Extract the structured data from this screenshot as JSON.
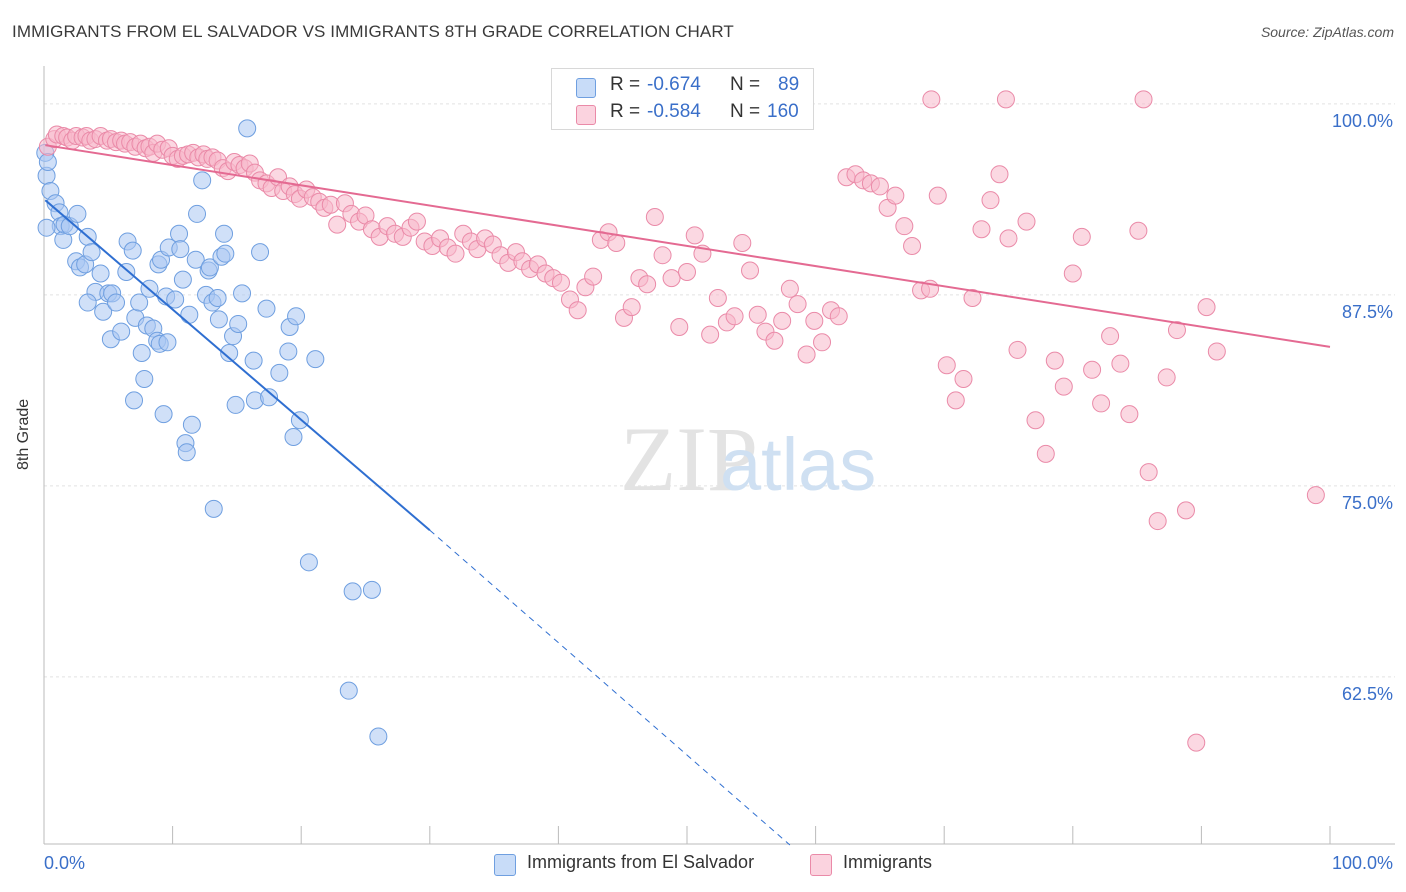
{
  "title": "IMMIGRANTS FROM EL SALVADOR VS IMMIGRANTS 8TH GRADE CORRELATION CHART",
  "source": "Source: ZipAtlas.com",
  "watermark": {
    "zip": "ZIP",
    "atlas": "atlas"
  },
  "stats": [
    {
      "r_label": "R =",
      "r_value": "-0.674",
      "n_label": "N =",
      "n_value": "89",
      "color": "#a9c7f2"
    },
    {
      "r_label": "R =",
      "r_value": "-0.584",
      "n_label": "N =",
      "n_value": "160",
      "color": "#f7b8cb"
    }
  ],
  "legend": [
    {
      "label": "Immigrants from El Salvador",
      "color": "#a9c7f2"
    },
    {
      "label": "Immigrants",
      "color": "#f7b8cb"
    }
  ],
  "chart_data": {
    "type": "scatter",
    "title": "IMMIGRANTS FROM EL SALVADOR VS IMMIGRANTS 8TH GRADE CORRELATION CHART",
    "xlabel": "",
    "ylabel": "8th Grade",
    "xlim": [
      0,
      100
    ],
    "ylim": [
      51.5,
      101.5
    ],
    "x_tick_labels": [
      "0.0%",
      "100.0%"
    ],
    "y_ticks": [
      62.5,
      75.0,
      87.5,
      100.0
    ],
    "y_tick_labels": [
      "62.5%",
      "75.0%",
      "87.5%",
      "100.0%"
    ],
    "grid": true,
    "legend_position": "bottom",
    "series": [
      {
        "name": "Immigrants from El Salvador",
        "color": "#a9c7f2",
        "stroke": "#6f9fe0",
        "trend": {
          "x0": 0.1,
          "y0": 93.7,
          "x1": 30.0,
          "y1": 72.1,
          "dash_to_x": 58.0,
          "dash_to_y": 51.5,
          "color": "#2f6fd1"
        },
        "points": [
          [
            0.1,
            96.8
          ],
          [
            0.2,
            95.3
          ],
          [
            0.5,
            94.3
          ],
          [
            0.9,
            93.5
          ],
          [
            1.2,
            92.9
          ],
          [
            1.3,
            92.0
          ],
          [
            1.5,
            91.1
          ],
          [
            1.6,
            92.1
          ],
          [
            2.0,
            92.0
          ],
          [
            2.6,
            92.8
          ],
          [
            2.5,
            89.7
          ],
          [
            2.8,
            89.3
          ],
          [
            3.2,
            89.5
          ],
          [
            3.4,
            91.3
          ],
          [
            3.7,
            90.3
          ],
          [
            4.0,
            87.7
          ],
          [
            4.4,
            88.9
          ],
          [
            4.6,
            86.4
          ],
          [
            5.0,
            87.6
          ],
          [
            5.3,
            87.6
          ],
          [
            3.4,
            87.0
          ],
          [
            5.6,
            87.0
          ],
          [
            5.2,
            84.6
          ],
          [
            6.0,
            85.1
          ],
          [
            6.4,
            89.0
          ],
          [
            6.5,
            91.0
          ],
          [
            6.9,
            90.4
          ],
          [
            7.1,
            86.0
          ],
          [
            7.4,
            87.0
          ],
          [
            7.6,
            83.7
          ],
          [
            7.8,
            82.0
          ],
          [
            7.0,
            80.6
          ],
          [
            8.0,
            85.5
          ],
          [
            8.2,
            87.9
          ],
          [
            8.5,
            85.3
          ],
          [
            8.8,
            84.5
          ],
          [
            8.9,
            89.5
          ],
          [
            9.1,
            89.8
          ],
          [
            9.3,
            79.7
          ],
          [
            9.0,
            84.3
          ],
          [
            9.6,
            84.4
          ],
          [
            9.5,
            87.4
          ],
          [
            9.7,
            90.6
          ],
          [
            10.2,
            87.2
          ],
          [
            10.5,
            91.5
          ],
          [
            10.8,
            88.5
          ],
          [
            10.6,
            90.5
          ],
          [
            11.0,
            77.8
          ],
          [
            11.1,
            77.2
          ],
          [
            11.3,
            86.2
          ],
          [
            11.5,
            79.0
          ],
          [
            11.8,
            89.8
          ],
          [
            11.9,
            92.8
          ],
          [
            12.3,
            95.0
          ],
          [
            12.6,
            87.5
          ],
          [
            12.8,
            89.1
          ],
          [
            12.9,
            89.3
          ],
          [
            13.1,
            87.0
          ],
          [
            13.2,
            73.5
          ],
          [
            13.5,
            87.3
          ],
          [
            13.6,
            85.9
          ],
          [
            13.8,
            90.0
          ],
          [
            14.0,
            91.5
          ],
          [
            14.1,
            90.2
          ],
          [
            14.4,
            83.7
          ],
          [
            14.7,
            84.8
          ],
          [
            14.9,
            80.3
          ],
          [
            15.1,
            85.6
          ],
          [
            15.4,
            87.6
          ],
          [
            15.8,
            98.4
          ],
          [
            16.4,
            80.6
          ],
          [
            16.3,
            83.2
          ],
          [
            16.8,
            90.3
          ],
          [
            17.3,
            86.6
          ],
          [
            17.5,
            80.8
          ],
          [
            18.3,
            82.4
          ],
          [
            19.0,
            83.8
          ],
          [
            19.1,
            85.4
          ],
          [
            19.4,
            78.2
          ],
          [
            19.6,
            86.1
          ],
          [
            19.9,
            79.3
          ],
          [
            20.6,
            70.0
          ],
          [
            21.1,
            83.3
          ],
          [
            23.7,
            61.6
          ],
          [
            24.0,
            68.1
          ],
          [
            25.5,
            68.2
          ],
          [
            26.0,
            58.6
          ],
          [
            0.2,
            91.9
          ],
          [
            0.3,
            96.2
          ]
        ]
      },
      {
        "name": "Immigrants",
        "color": "#f7b8cb",
        "stroke": "#ea8aa8",
        "trend": {
          "x0": 0.1,
          "y0": 97.3,
          "x1": 100.0,
          "y1": 84.1,
          "color": "#e46a92"
        },
        "points": [
          [
            0.3,
            97.2
          ],
          [
            0.8,
            97.7
          ],
          [
            1.0,
            98.0
          ],
          [
            1.5,
            97.9
          ],
          [
            1.8,
            97.8
          ],
          [
            2.2,
            97.6
          ],
          [
            2.5,
            97.9
          ],
          [
            3.0,
            97.8
          ],
          [
            3.3,
            97.9
          ],
          [
            3.6,
            97.6
          ],
          [
            4.0,
            97.7
          ],
          [
            4.4,
            97.9
          ],
          [
            4.9,
            97.6
          ],
          [
            5.2,
            97.7
          ],
          [
            5.6,
            97.5
          ],
          [
            6.0,
            97.6
          ],
          [
            6.3,
            97.4
          ],
          [
            6.7,
            97.5
          ],
          [
            7.1,
            97.2
          ],
          [
            7.5,
            97.4
          ],
          [
            7.9,
            97.1
          ],
          [
            8.2,
            97.2
          ],
          [
            8.5,
            96.8
          ],
          [
            8.8,
            97.4
          ],
          [
            9.2,
            97.0
          ],
          [
            9.7,
            97.1
          ],
          [
            10.0,
            96.6
          ],
          [
            10.4,
            96.4
          ],
          [
            10.8,
            96.6
          ],
          [
            11.2,
            96.7
          ],
          [
            11.6,
            96.8
          ],
          [
            12.0,
            96.5
          ],
          [
            12.4,
            96.7
          ],
          [
            12.7,
            96.4
          ],
          [
            13.1,
            96.5
          ],
          [
            13.5,
            96.3
          ],
          [
            13.9,
            95.8
          ],
          [
            14.3,
            95.6
          ],
          [
            14.8,
            96.2
          ],
          [
            15.2,
            96.0
          ],
          [
            15.6,
            95.8
          ],
          [
            16.0,
            96.1
          ],
          [
            16.4,
            95.5
          ],
          [
            16.8,
            95.0
          ],
          [
            17.3,
            94.8
          ],
          [
            17.7,
            94.5
          ],
          [
            18.2,
            95.2
          ],
          [
            18.6,
            94.3
          ],
          [
            19.1,
            94.6
          ],
          [
            19.5,
            94.1
          ],
          [
            19.9,
            93.8
          ],
          [
            20.4,
            94.4
          ],
          [
            20.9,
            93.9
          ],
          [
            21.4,
            93.6
          ],
          [
            21.8,
            93.2
          ],
          [
            22.3,
            93.4
          ],
          [
            22.8,
            92.1
          ],
          [
            23.4,
            93.5
          ],
          [
            23.9,
            92.8
          ],
          [
            24.5,
            92.3
          ],
          [
            25.0,
            92.7
          ],
          [
            25.5,
            91.8
          ],
          [
            26.1,
            91.3
          ],
          [
            26.7,
            92.0
          ],
          [
            27.3,
            91.5
          ],
          [
            27.9,
            91.3
          ],
          [
            28.5,
            91.9
          ],
          [
            29.0,
            92.3
          ],
          [
            29.6,
            91.0
          ],
          [
            30.2,
            90.7
          ],
          [
            30.8,
            91.2
          ],
          [
            31.4,
            90.6
          ],
          [
            32.0,
            90.2
          ],
          [
            32.6,
            91.5
          ],
          [
            33.2,
            91.0
          ],
          [
            33.7,
            90.5
          ],
          [
            34.3,
            91.2
          ],
          [
            34.9,
            90.8
          ],
          [
            35.5,
            90.1
          ],
          [
            36.1,
            89.6
          ],
          [
            36.7,
            90.3
          ],
          [
            37.2,
            89.7
          ],
          [
            37.8,
            89.2
          ],
          [
            38.4,
            89.5
          ],
          [
            39.0,
            88.9
          ],
          [
            39.6,
            88.6
          ],
          [
            40.2,
            88.3
          ],
          [
            40.9,
            87.2
          ],
          [
            41.5,
            86.5
          ],
          [
            42.1,
            88.0
          ],
          [
            42.7,
            88.7
          ],
          [
            43.3,
            91.1
          ],
          [
            43.9,
            91.6
          ],
          [
            44.5,
            90.9
          ],
          [
            45.1,
            86.0
          ],
          [
            45.7,
            86.7
          ],
          [
            46.3,
            88.6
          ],
          [
            46.9,
            88.2
          ],
          [
            47.5,
            92.6
          ],
          [
            48.1,
            90.1
          ],
          [
            48.8,
            88.6
          ],
          [
            49.4,
            85.4
          ],
          [
            50.0,
            89.0
          ],
          [
            50.6,
            91.4
          ],
          [
            51.2,
            90.2
          ],
          [
            51.8,
            84.9
          ],
          [
            52.4,
            87.3
          ],
          [
            53.1,
            85.7
          ],
          [
            53.7,
            86.1
          ],
          [
            54.3,
            90.9
          ],
          [
            54.9,
            89.1
          ],
          [
            55.5,
            86.2
          ],
          [
            56.1,
            85.1
          ],
          [
            56.8,
            84.5
          ],
          [
            57.4,
            85.8
          ],
          [
            58.0,
            87.9
          ],
          [
            58.6,
            86.9
          ],
          [
            59.3,
            83.6
          ],
          [
            59.9,
            85.8
          ],
          [
            60.5,
            84.4
          ],
          [
            61.2,
            86.5
          ],
          [
            61.8,
            86.1
          ],
          [
            62.4,
            95.2
          ],
          [
            63.1,
            95.4
          ],
          [
            63.7,
            95.0
          ],
          [
            64.3,
            94.8
          ],
          [
            65.0,
            94.6
          ],
          [
            65.6,
            93.2
          ],
          [
            66.2,
            94.0
          ],
          [
            66.9,
            92.0
          ],
          [
            67.5,
            90.7
          ],
          [
            68.2,
            87.8
          ],
          [
            68.9,
            87.9
          ],
          [
            69.5,
            94.0
          ],
          [
            70.2,
            82.9
          ],
          [
            70.9,
            80.6
          ],
          [
            71.5,
            82.0
          ],
          [
            72.2,
            87.3
          ],
          [
            72.9,
            91.8
          ],
          [
            73.6,
            93.7
          ],
          [
            74.3,
            95.4
          ],
          [
            75.0,
            91.2
          ],
          [
            75.7,
            83.9
          ],
          [
            76.4,
            92.3
          ],
          [
            77.1,
            79.3
          ],
          [
            77.9,
            77.1
          ],
          [
            78.6,
            83.2
          ],
          [
            79.3,
            81.5
          ],
          [
            80.0,
            88.9
          ],
          [
            80.7,
            91.3
          ],
          [
            81.5,
            82.6
          ],
          [
            82.2,
            80.4
          ],
          [
            82.9,
            84.8
          ],
          [
            83.7,
            83.0
          ],
          [
            84.4,
            79.7
          ],
          [
            85.1,
            91.7
          ],
          [
            85.9,
            75.9
          ],
          [
            86.6,
            72.7
          ],
          [
            87.3,
            82.1
          ],
          [
            88.1,
            85.2
          ],
          [
            88.8,
            73.4
          ],
          [
            89.6,
            58.2
          ],
          [
            90.4,
            86.7
          ],
          [
            91.2,
            83.8
          ],
          [
            98.9,
            74.4
          ],
          [
            69.0,
            100.3
          ],
          [
            74.8,
            100.3
          ],
          [
            85.5,
            100.3
          ]
        ]
      }
    ]
  }
}
